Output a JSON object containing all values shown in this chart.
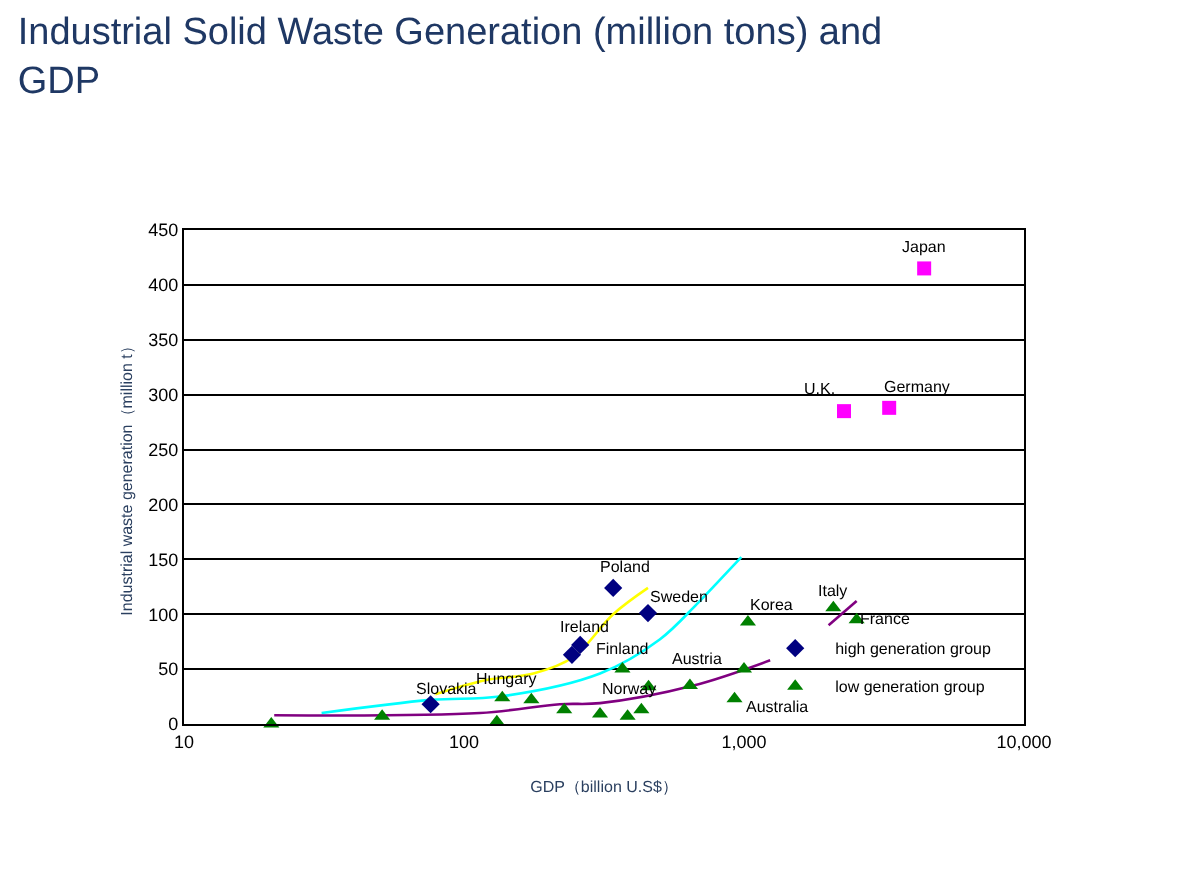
{
  "chart_data": {
    "type": "scatter",
    "title": "Industrial Solid Waste Generation (million tons) and GDP",
    "xlabel": "GDP（billion U.S$）",
    "ylabel": "Industrial waste generation（million t）",
    "log": "x",
    "xlim": [
      10,
      10000
    ],
    "xticks": [
      10,
      100,
      {
        "value": 1000,
        "label": "1,000"
      },
      {
        "value": 10000,
        "label": "10,000"
      }
    ],
    "ylim": [
      0,
      450
    ],
    "yticks": [
      0,
      50,
      100,
      150,
      200,
      250,
      300,
      350,
      400,
      450
    ],
    "grid": "y",
    "legend": "right",
    "series": [
      {
        "type": "line",
        "color": "#ffff00",
        "marker": "none",
        "x": [
          79,
          120,
          177,
          246,
          341,
          454
        ],
        "values": [
          27,
          40,
          46,
          61,
          100,
          124
        ]
      },
      {
        "type": "line",
        "color": "#00ffff",
        "marker": "none",
        "x": [
          31,
          76,
          134,
          306,
          500,
          677,
          777,
          978
        ],
        "values": [
          10,
          22,
          25,
          46,
          77,
          109,
          125,
          152
        ]
      },
      {
        "type": "line",
        "color": "#800080",
        "marker": "none",
        "x": [
          21,
          114,
          220,
          306,
          660,
          1240
        ],
        "values": [
          8,
          10,
          18,
          19,
          35,
          58
        ]
      },
      {
        "type": "line",
        "color": "#800080",
        "marker": "none",
        "x": [
          2005,
          2525
        ],
        "values": [
          90,
          112
        ]
      },
      {
        "color": "#ff00ff",
        "marker": "square",
        "x": [
          4400,
          2276,
          3300
        ],
        "values": [
          415,
          285,
          288
        ]
      },
      {
        "name": "high generation group",
        "color": "#000080",
        "marker": "diamond",
        "x": [
          341,
          454,
          243,
          260,
          76
        ],
        "values": [
          124,
          101,
          63,
          72,
          18
        ]
      },
      {
        "name": "low generation group",
        "color": "#008000",
        "marker": "triangle",
        "x": [
          20.5,
          51,
          131,
          137,
          174,
          228,
          306,
          384,
          368,
          456,
          430,
          641,
          1000,
          925,
          1033,
          2085,
          2525
        ],
        "values": [
          0,
          7,
          2,
          24,
          22,
          13,
          9,
          7,
          50,
          34,
          13,
          35,
          50,
          23,
          93,
          106,
          95
        ]
      }
    ],
    "annotations": [
      {
        "text": "Japan",
        "x": 4400,
        "y": 415
      },
      {
        "text": "U.K.",
        "x": 2276,
        "y": 285
      },
      {
        "text": "Germany",
        "x": 3300,
        "y": 288
      },
      {
        "text": "Poland",
        "x": 341,
        "y": 124
      },
      {
        "text": "Sweden",
        "x": 454,
        "y": 101
      },
      {
        "text": "Ireland",
        "x": 260,
        "y": 72
      },
      {
        "text": "Slovakia",
        "x": 76,
        "y": 18
      },
      {
        "text": "Hungary",
        "x": 137,
        "y": 24
      },
      {
        "text": "Finland",
        "x": 368,
        "y": 50
      },
      {
        "text": "Austria",
        "x": 456,
        "y": 34
      },
      {
        "text": "Norway",
        "x": 430,
        "y": 13
      },
      {
        "text": "Australia",
        "x": 925,
        "y": 23
      },
      {
        "text": "Korea",
        "x": 1033,
        "y": 93
      },
      {
        "text": "Italy",
        "x": 2085,
        "y": 106
      },
      {
        "text": "France",
        "x": 2525,
        "y": 95
      }
    ]
  }
}
